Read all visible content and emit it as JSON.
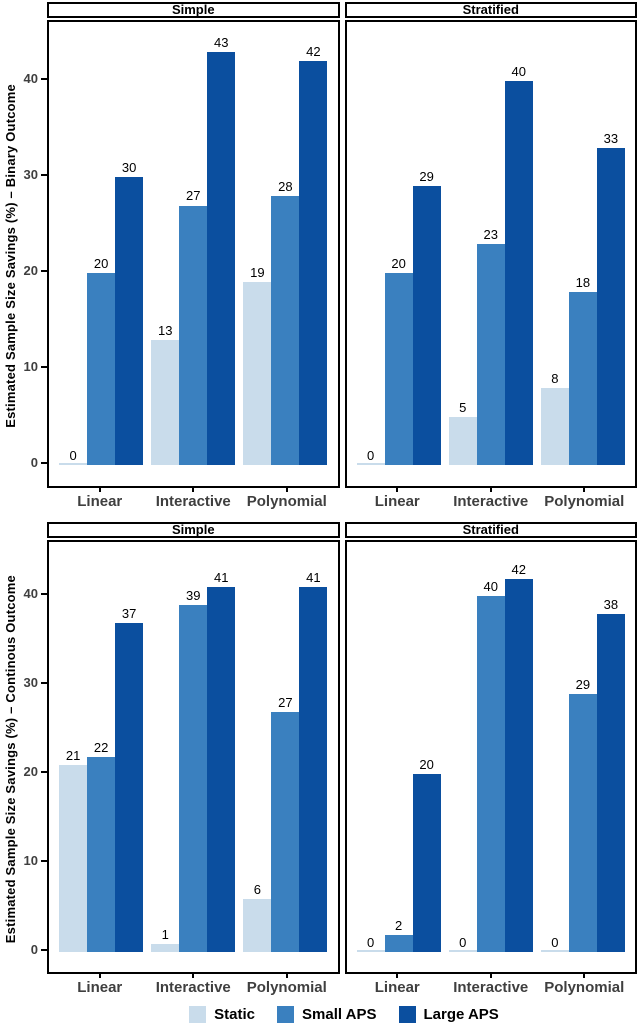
{
  "legend": {
    "items": [
      {
        "label": "Static",
        "color": "#C9DCEB"
      },
      {
        "label": "Small APS",
        "color": "#3A80BF"
      },
      {
        "label": "Large APS",
        "color": "#0B4F9F"
      }
    ]
  },
  "colors": {
    "panel_border": "#000000",
    "axis_text": "#3f3f3f",
    "value_label": "#000000",
    "background": "#ffffff"
  },
  "chart_data": [
    {
      "type": "bar",
      "ylabel": "Estimated Sample Size Savings (%) – Binary Outcome",
      "xlabel": "",
      "ylim": [
        0,
        46
      ],
      "yticks": [
        0,
        10,
        20,
        30,
        40
      ],
      "grid": "off",
      "legend_position": "bottom",
      "categories": [
        "Linear",
        "Interactive",
        "Polynomial"
      ],
      "facets": [
        {
          "label": "Simple",
          "series": [
            {
              "name": "Static",
              "values": [
                0,
                13,
                19
              ]
            },
            {
              "name": "Small APS",
              "values": [
                20,
                27,
                28
              ]
            },
            {
              "name": "Large APS",
              "values": [
                30,
                43,
                42
              ]
            }
          ]
        },
        {
          "label": "Stratified",
          "series": [
            {
              "name": "Static",
              "values": [
                0,
                5,
                8
              ]
            },
            {
              "name": "Small APS",
              "values": [
                20,
                23,
                18
              ]
            },
            {
              "name": "Large APS",
              "values": [
                29,
                40,
                33
              ]
            }
          ]
        }
      ]
    },
    {
      "type": "bar",
      "ylabel": "Estimated Sample Size Savings (%) – Continous Outcome",
      "xlabel": "",
      "ylim": [
        0,
        46
      ],
      "yticks": [
        0,
        10,
        20,
        30,
        40
      ],
      "grid": "off",
      "legend_position": "bottom",
      "categories": [
        "Linear",
        "Interactive",
        "Polynomial"
      ],
      "facets": [
        {
          "label": "Simple",
          "series": [
            {
              "name": "Static",
              "values": [
                21,
                1,
                6
              ]
            },
            {
              "name": "Small APS",
              "values": [
                22,
                39,
                27
              ]
            },
            {
              "name": "Large APS",
              "values": [
                37,
                41,
                41
              ]
            }
          ]
        },
        {
          "label": "Stratified",
          "series": [
            {
              "name": "Static",
              "values": [
                0,
                0,
                0
              ]
            },
            {
              "name": "Small APS",
              "values": [
                2,
                40,
                29
              ]
            },
            {
              "name": "Large APS",
              "values": [
                20,
                42,
                38
              ]
            }
          ]
        }
      ]
    }
  ]
}
